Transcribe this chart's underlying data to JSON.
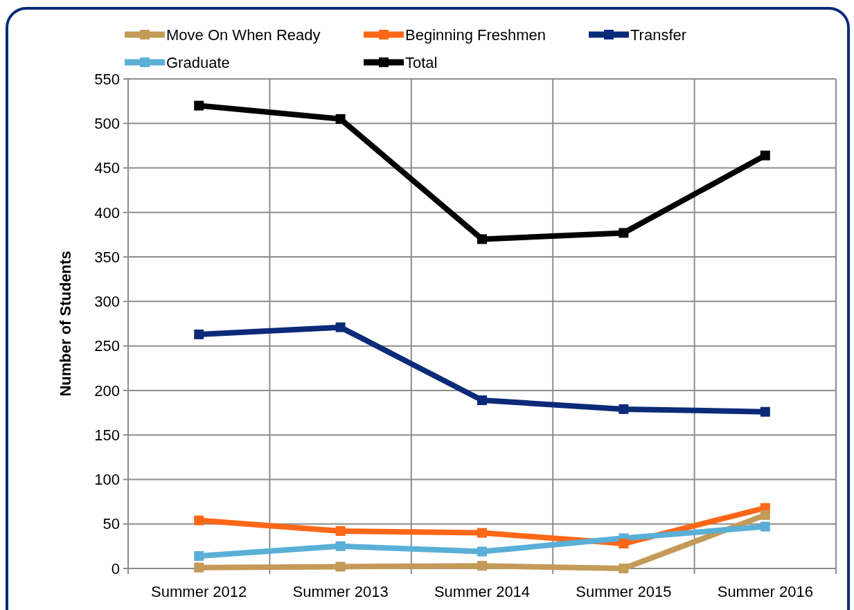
{
  "chart_data": {
    "type": "line",
    "ylabel": "Number of Students",
    "categories": [
      "Summer 2012",
      "Summer 2013",
      "Summer 2014",
      "Summer 2015",
      "Summer 2016"
    ],
    "series": [
      {
        "name": "Move On When Ready",
        "color": "#c49a58",
        "values": [
          1,
          2,
          3,
          0,
          60
        ]
      },
      {
        "name": "Beginning Freshmen",
        "color": "#fd6718",
        "values": [
          54,
          42,
          40,
          28,
          68
        ]
      },
      {
        "name": "Transfer",
        "color": "#0b2a78",
        "values": [
          263,
          271,
          189,
          179,
          176
        ]
      },
      {
        "name": "Graduate",
        "color": "#5aafd6",
        "values": [
          14,
          25,
          19,
          34,
          47
        ]
      },
      {
        "name": "Total",
        "color": "#000000",
        "values": [
          520,
          505,
          370,
          377,
          464
        ]
      }
    ],
    "ylim": [
      0,
      550
    ],
    "yticks": [
      0,
      50,
      100,
      150,
      200,
      250,
      300,
      350,
      400,
      450,
      500,
      550
    ],
    "grid": true,
    "legend": "top",
    "marker": "square",
    "line_style": "solid"
  }
}
